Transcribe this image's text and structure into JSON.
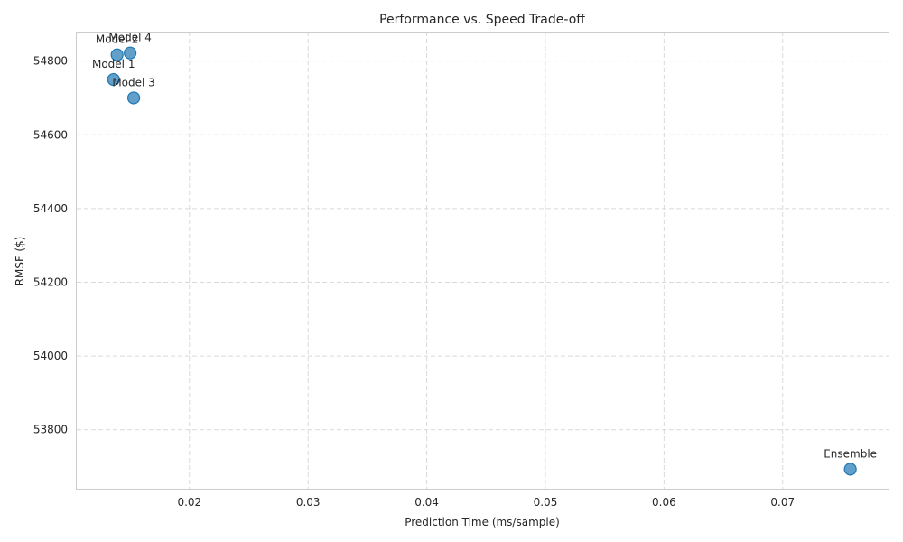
{
  "chart_data": {
    "type": "scatter",
    "title": "Performance vs. Speed Trade-off",
    "xlabel": "Prediction Time (ms/sample)",
    "ylabel": "RMSE ($)",
    "xlim": [
      0.0105,
      0.079
    ],
    "ylim": [
      53640,
      54880
    ],
    "xticks": [
      0.02,
      0.03,
      0.04,
      0.05,
      0.06,
      0.07
    ],
    "xtick_labels": [
      "0.02",
      "0.03",
      "0.04",
      "0.05",
      "0.06",
      "0.07"
    ],
    "yticks": [
      53800,
      54000,
      54200,
      54400,
      54600,
      54800
    ],
    "ytick_labels": [
      "53800",
      "54000",
      "54200",
      "54400",
      "54600",
      "54800"
    ],
    "grid": true,
    "color": "#1f77b4",
    "points": [
      {
        "label": "Model 1",
        "x": 0.0136,
        "y": 54750
      },
      {
        "label": "Model 2",
        "x": 0.0139,
        "y": 54817
      },
      {
        "label": "Model 3",
        "x": 0.0153,
        "y": 54700
      },
      {
        "label": "Model 4",
        "x": 0.015,
        "y": 54822
      },
      {
        "label": "Ensemble",
        "x": 0.0757,
        "y": 53693
      }
    ]
  }
}
